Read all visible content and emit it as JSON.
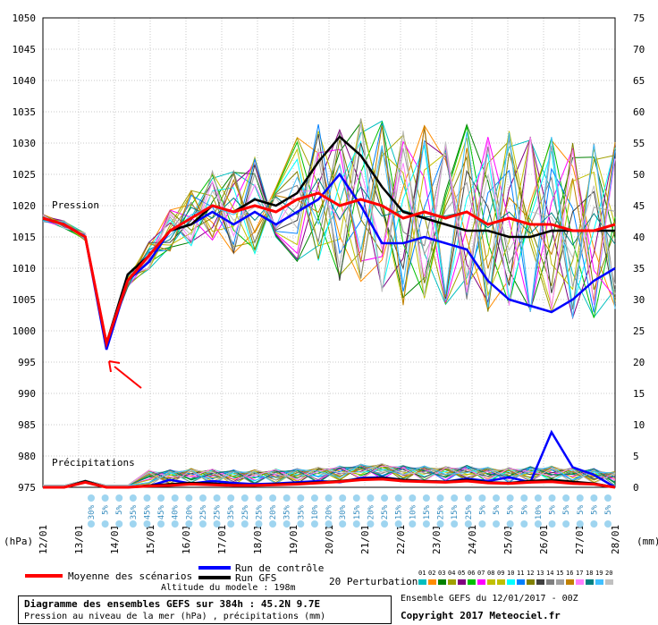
{
  "chart_data": {
    "type": "line",
    "title": "Diagramme des ensembles GEFS sur 384h : 45.2N 9.7E",
    "subtitle": "Pression au niveau de la mer (hPa) , précipitations (mm)",
    "x_ticks": [
      "12/01",
      "13/01",
      "14/01",
      "15/01",
      "16/01",
      "17/01",
      "18/01",
      "19/01",
      "20/01",
      "21/01",
      "22/01",
      "23/01",
      "24/01",
      "25/01",
      "26/01",
      "27/01",
      "28/01"
    ],
    "y_left_ticks": [
      975,
      980,
      985,
      990,
      995,
      1000,
      1005,
      1010,
      1015,
      1020,
      1025,
      1030,
      1035,
      1040,
      1045,
      1050
    ],
    "y_right_ticks": [
      0,
      5,
      10,
      15,
      20,
      25,
      30,
      35,
      40,
      45,
      50,
      55,
      60,
      65,
      70,
      75
    ],
    "y_left_label": "(hPa)",
    "y_right_label": "(mm)",
    "ylim_left": [
      975,
      1050
    ],
    "ylim_right": [
      0,
      75
    ],
    "grid": true,
    "label_pression": "Pression",
    "label_precip": "Précipitations",
    "pressure_series": {
      "moyenne": [
        1018,
        1017,
        1015,
        998,
        1008,
        1012,
        1016,
        1018,
        1020,
        1019,
        1020,
        1019,
        1021,
        1022,
        1020,
        1021,
        1020,
        1018,
        1019,
        1018,
        1019,
        1017,
        1018,
        1017,
        1017,
        1016,
        1016,
        1017
      ],
      "gfs": [
        1018,
        1017,
        1015,
        998,
        1009,
        1012,
        1016,
        1017,
        1020,
        1019,
        1021,
        1020,
        1022,
        1027,
        1031,
        1028,
        1023,
        1019,
        1018,
        1017,
        1016,
        1016,
        1015,
        1015,
        1016,
        1016,
        1016,
        1016
      ],
      "controle": [
        1018,
        1017,
        1015,
        997,
        1008,
        1011,
        1016,
        1017,
        1019,
        1017,
        1019,
        1017,
        1019,
        1021,
        1025,
        1020,
        1014,
        1014,
        1015,
        1014,
        1013,
        1008,
        1005,
        1004,
        1003,
        1005,
        1008,
        1010
      ]
    },
    "precip_series": {
      "moyenne": [
        0,
        0,
        0.8,
        0,
        0,
        0.2,
        0.3,
        0.5,
        0.4,
        0.3,
        0.3,
        0.4,
        0.5,
        0.7,
        0.9,
        1.2,
        1.3,
        1.0,
        0.9,
        0.8,
        1.0,
        0.7,
        0.6,
        0.8,
        0.9,
        0.6,
        0.5,
        0
      ],
      "gfs": [
        0,
        0,
        1.0,
        0,
        0,
        0.3,
        0.5,
        0.7,
        0.6,
        0.4,
        0.3,
        0.5,
        0.6,
        0.8,
        1.0,
        1.3,
        1.5,
        1.2,
        1.0,
        0.9,
        1.2,
        0.8,
        0.7,
        1.0,
        1.2,
        0.9,
        0.6,
        0
      ],
      "controle": [
        0,
        0,
        0.9,
        0,
        0,
        0.2,
        1.2,
        0.6,
        1.0,
        0.7,
        0.5,
        0.6,
        0.8,
        1.0,
        0.8,
        1.5,
        1.6,
        1.2,
        1.0,
        0.9,
        1.4,
        1.0,
        1.6,
        0.8,
        8.8,
        3.2,
        2.0,
        0
      ]
    },
    "precip_prob": [
      "30%",
      "5%",
      "5%",
      "35%",
      "45%",
      "45%",
      "40%",
      "20%",
      "25%",
      "25%",
      "35%",
      "25%",
      "25%",
      "20%",
      "35%",
      "35%",
      "10%",
      "20%",
      "30%",
      "15%",
      "20%",
      "25%",
      "15%",
      "10%",
      "15%",
      "25%",
      "15%",
      "25%",
      "5%",
      "5%",
      "5%",
      "5%",
      "10%",
      "5%",
      "5%",
      "5%",
      "5%",
      "5%"
    ],
    "legend": {
      "moyenne": "Moyenne des scénarios",
      "controle": "Run de contrôle",
      "gfs": "Run GFS",
      "perturbations": "20 Perturbations",
      "pert_numbers": [
        "01",
        "02",
        "03",
        "04",
        "05",
        "06",
        "07",
        "08",
        "09",
        "10",
        "11",
        "12",
        "13",
        "14",
        "15",
        "16",
        "17",
        "18",
        "19",
        "20"
      ]
    },
    "colors": {
      "moyenne": "#ff0000",
      "gfs": "#000000",
      "controle": "#0000ff",
      "perturbations": [
        "#00bfbf",
        "#ff8c00",
        "#008000",
        "#a0a000",
        "#800080",
        "#00c000",
        "#ff00ff",
        "#c0c000",
        "#bfbf00",
        "#00ffff",
        "#0080ff",
        "#808000",
        "#404040",
        "#808080",
        "#a0a0a0",
        "#c08000",
        "#ff80ff",
        "#008080",
        "#40c0ff",
        "#c0c0c0"
      ],
      "prob_dot": "#9fd5f0"
    }
  },
  "info": {
    "altitude": "Altitude du modele : 198m",
    "ensemble": "Ensemble GEFS du 12/01/2017 - 00Z",
    "copyright": "Copyright 2017 Meteociel.fr"
  }
}
